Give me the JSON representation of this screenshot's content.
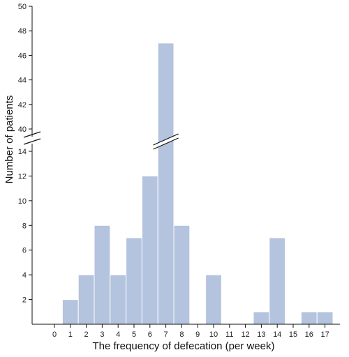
{
  "chart_data": {
    "type": "bar",
    "xlabel": "The frequency of defecation (per week)",
    "ylabel": "Number of patients",
    "categories": [
      "0",
      "1",
      "2",
      "3",
      "4",
      "5",
      "6",
      "7",
      "8",
      "9",
      "10",
      "11",
      "12",
      "13",
      "14",
      "15",
      "16",
      "17"
    ],
    "values": [
      0,
      2,
      4,
      8,
      4,
      7,
      12,
      47,
      8,
      0,
      4,
      0,
      0,
      1,
      7,
      0,
      1,
      1
    ],
    "y_axis_break": {
      "lower_range": [
        0,
        14
      ],
      "upper_range": [
        40,
        50
      ]
    },
    "y_ticks_lower": [
      2,
      4,
      6,
      8,
      10,
      12,
      14
    ],
    "y_ticks_upper": [
      40,
      42,
      44,
      46,
      48,
      50
    ],
    "bar_color": "#b4c3de",
    "grid": false,
    "legend": "none"
  }
}
